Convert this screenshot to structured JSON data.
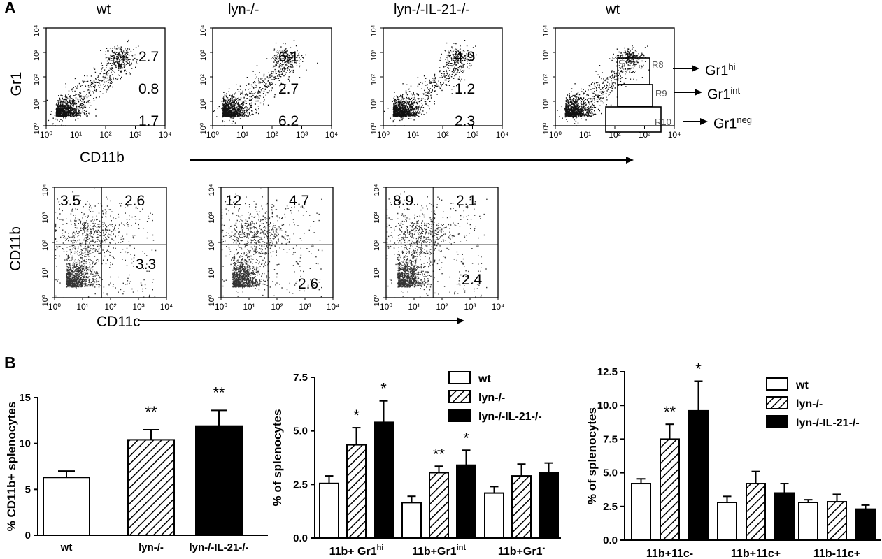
{
  "panel_labels": {
    "a": "A",
    "b": "B"
  },
  "top_titles": [
    "wt",
    "lyn-/-",
    "lyn-/-IL-21-/-",
    "wt"
  ],
  "gr1_plots": {
    "ylabel": "Gr1",
    "xlabel": "CD11b",
    "tick_labels": [
      "10⁰",
      "10¹",
      "10²",
      "10³",
      "10⁴"
    ],
    "panels": [
      {
        "values": [
          "2.7",
          "0.8",
          "1.7"
        ]
      },
      {
        "values": [
          "6.1",
          "2.7",
          "6.2"
        ]
      },
      {
        "values": [
          "4.9",
          "1.2",
          "2.3"
        ]
      },
      {
        "gates": [
          "R8",
          "R9",
          "R10"
        ]
      }
    ]
  },
  "gate_labels": [
    {
      "base": "Gr1",
      "sup": "hi"
    },
    {
      "base": "Gr1",
      "sup": "int"
    },
    {
      "base": "Gr1",
      "sup": "neg"
    }
  ],
  "cd11c_plots": {
    "ylabel": "CD11b",
    "xlabel": "CD11c",
    "panels": [
      {
        "values": [
          "3.5",
          "2.6",
          "3.3"
        ]
      },
      {
        "values": [
          "12",
          "4.7",
          "2.6"
        ]
      },
      {
        "values": [
          "8.9",
          "2.1",
          "2.4"
        ]
      }
    ]
  },
  "chart_data": [
    {
      "type": "bar",
      "ylabel": "% CD11b+ splenocytes",
      "ylim": [
        0,
        15
      ],
      "yticks": [
        "0",
        "5",
        "10",
        "15"
      ],
      "categories": [
        "wt",
        "lyn-/-",
        "lyn-/-IL-21-/-"
      ],
      "values": [
        6.3,
        10.4,
        11.9
      ],
      "errors": [
        0.7,
        1.1,
        1.7
      ],
      "fills": [
        "white",
        "hatch",
        "black"
      ],
      "stars": [
        "",
        "**",
        "**"
      ]
    },
    {
      "type": "bar",
      "ylabel": "% of splenocytes",
      "ylim": [
        0,
        7.5
      ],
      "yticks": [
        "0.0",
        "2.5",
        "5.0",
        "7.5"
      ],
      "categories": [
        {
          "base": "11b+ Gr1",
          "sup": "hi"
        },
        {
          "base": "11b+Gr1",
          "sup": "int"
        },
        {
          "base": "11b+Gr1",
          "sup": "-"
        }
      ],
      "legend": {
        "position": "top-right",
        "entries": [
          "wt",
          "lyn-/-",
          "lyn-/-IL-21-/-"
        ]
      },
      "series": [
        {
          "name": "wt",
          "values": [
            2.55,
            1.65,
            2.1
          ],
          "errors": [
            0.35,
            0.3,
            0.3
          ],
          "stars": [
            "",
            "",
            ""
          ]
        },
        {
          "name": "lyn-/-",
          "values": [
            4.35,
            3.05,
            2.9
          ],
          "errors": [
            0.8,
            0.3,
            0.55
          ],
          "stars": [
            "*",
            "**",
            ""
          ]
        },
        {
          "name": "lyn-/-IL-21-/-",
          "values": [
            5.4,
            3.4,
            3.05
          ],
          "errors": [
            1.0,
            0.7,
            0.45
          ],
          "stars": [
            "*",
            "*",
            ""
          ]
        }
      ]
    },
    {
      "type": "bar",
      "ylabel": "% of splenocytes",
      "ylim": [
        0,
        12.5
      ],
      "yticks": [
        "0.0",
        "2.5",
        "5.0",
        "7.5",
        "10.0",
        "12.5"
      ],
      "categories": [
        "11b+11c-",
        "11b+11c+",
        "11b-11c+"
      ],
      "legend": {
        "position": "top-right",
        "entries": [
          "wt",
          "lyn-/-",
          "lyn-/-IL-21-/-"
        ]
      },
      "series": [
        {
          "name": "wt",
          "values": [
            4.2,
            2.8,
            2.8
          ],
          "errors": [
            0.35,
            0.45,
            0.2
          ],
          "stars": [
            "",
            "",
            ""
          ]
        },
        {
          "name": "lyn-/-",
          "values": [
            7.5,
            4.2,
            2.85
          ],
          "errors": [
            1.1,
            0.9,
            0.55
          ],
          "stars": [
            "**",
            "",
            ""
          ]
        },
        {
          "name": "lyn-/-IL-21-/-",
          "values": [
            9.6,
            3.5,
            2.3
          ],
          "errors": [
            2.2,
            0.7,
            0.3
          ],
          "stars": [
            "*",
            "",
            ""
          ]
        }
      ]
    }
  ]
}
